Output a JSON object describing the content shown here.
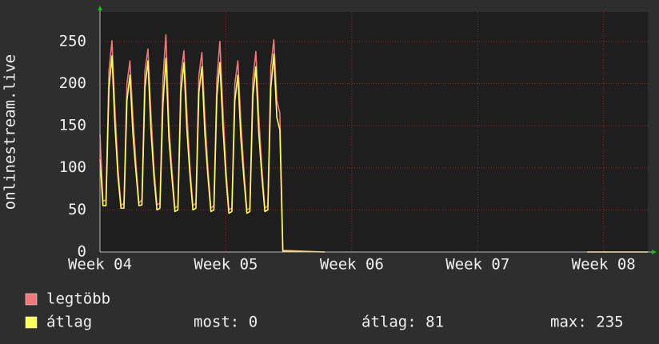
{
  "chart_data": {
    "type": "line",
    "y_label": "onlinestream.live",
    "x": [
      0,
      4,
      8,
      12,
      16,
      20,
      24,
      28,
      32,
      36,
      40,
      44,
      48,
      52,
      56,
      60,
      64,
      68,
      72,
      76,
      80,
      84,
      88,
      92,
      96,
      100,
      104,
      108,
      112,
      116,
      120,
      124,
      128,
      132,
      136,
      140,
      144,
      148,
      152,
      156,
      160,
      164,
      168,
      172,
      176,
      180,
      184,
      188,
      192,
      196,
      200,
      204,
      208,
      212,
      216,
      220,
      224,
      228,
      232,
      236,
      240,
      244,
      300,
      310,
      650,
      731
    ],
    "series": [
      {
        "name": "legtöbb",
        "color": "#f07878",
        "values": [
          140,
          60,
          62,
          215,
          251,
          170,
          100,
          55,
          58,
          200,
          227,
          160,
          105,
          58,
          62,
          215,
          241,
          165,
          100,
          56,
          58,
          205,
          258,
          150,
          98,
          52,
          55,
          210,
          239,
          165,
          102,
          55,
          58,
          210,
          237,
          160,
          100,
          52,
          55,
          205,
          250,
          170,
          100,
          50,
          52,
          200,
          227,
          155,
          98,
          50,
          52,
          205,
          238,
          160,
          100,
          52,
          55,
          220,
          252,
          180,
          165,
          2,
          0,
          null,
          0,
          0
        ]
      },
      {
        "name": "átlag",
        "color": "#ffff5a",
        "values": [
          110,
          55,
          55,
          195,
          233,
          150,
          90,
          52,
          52,
          180,
          210,
          140,
          95,
          55,
          56,
          195,
          227,
          145,
          90,
          50,
          52,
          175,
          230,
          135,
          88,
          48,
          50,
          190,
          225,
          145,
          92,
          50,
          52,
          190,
          220,
          140,
          90,
          48,
          50,
          185,
          225,
          150,
          90,
          46,
          48,
          180,
          210,
          135,
          88,
          46,
          48,
          185,
          220,
          140,
          90,
          48,
          50,
          195,
          235,
          160,
          145,
          1,
          0,
          null,
          0,
          0
        ]
      }
    ],
    "xlim": [
      0,
      731
    ],
    "xticks": [
      {
        "value": 0,
        "label": "Week 04"
      },
      {
        "value": 168,
        "label": "Week 05"
      },
      {
        "value": 336,
        "label": "Week 06"
      },
      {
        "value": 504,
        "label": "Week 07"
      },
      {
        "value": 672,
        "label": "Week 08"
      }
    ],
    "ylim": [
      0,
      285
    ],
    "yticks": [
      0,
      50,
      100,
      150,
      200,
      250
    ],
    "grid": true,
    "stats": [
      {
        "label": "most:",
        "value": 0
      },
      {
        "label": "átlag:",
        "value": 81
      },
      {
        "label": "max:",
        "value": 235
      }
    ]
  }
}
